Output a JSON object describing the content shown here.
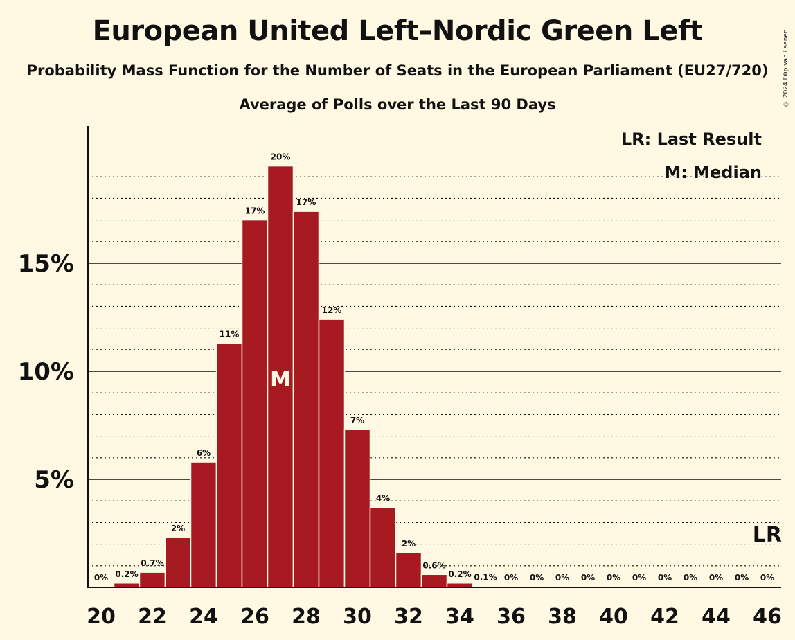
{
  "title": "European United Left–Nordic Green Left",
  "subtitle": "Probability Mass Function for the Number of Seats in the European Parliament (EU27/720)",
  "subtitle2": "Average of Polls over the Last 90 Days",
  "copyright": "© 2024 Filip van Laenen",
  "legend": {
    "last_result": "LR: Last Result",
    "median": "M: Median"
  },
  "markers": {
    "median_label": "M",
    "last_result_label": "LR"
  },
  "colors": {
    "bar": "#a71a22",
    "background": "#fff8e3"
  },
  "chart_data": {
    "type": "bar",
    "title": "European United Left–Nordic Green Left",
    "categories": [
      20,
      21,
      22,
      23,
      24,
      25,
      26,
      27,
      28,
      29,
      30,
      31,
      32,
      33,
      34,
      35,
      36,
      37,
      38,
      39,
      40,
      41,
      42,
      43,
      44,
      45,
      46
    ],
    "values": [
      0,
      0.2,
      0.7,
      2.3,
      5.8,
      11.3,
      17.0,
      19.5,
      17.4,
      12.4,
      7.3,
      3.7,
      1.6,
      0.6,
      0.2,
      0.05,
      0,
      0,
      0,
      0,
      0,
      0,
      0,
      0,
      0,
      0,
      0
    ],
    "labels": [
      "0%",
      "0.2%",
      "0.7%",
      "2%",
      "6%",
      "11%",
      "17%",
      "20%",
      "17%",
      "12%",
      "7%",
      "4%",
      "2%",
      "0.6%",
      "0.2%",
      "0.1%",
      "0%",
      "0%",
      "0%",
      "0%",
      "0%",
      "0%",
      "0%",
      "0%",
      "0%",
      "0%",
      "0%"
    ],
    "x_ticks": [
      20,
      22,
      24,
      26,
      28,
      30,
      32,
      34,
      36,
      38,
      40,
      42,
      44,
      46
    ],
    "y_ticks": [
      {
        "value": 5,
        "label": "5%"
      },
      {
        "value": 10,
        "label": "10%"
      },
      {
        "value": 15,
        "label": "15%"
      }
    ],
    "ylim": [
      0,
      21.3
    ],
    "median": 27,
    "last_result": 46,
    "grid": true,
    "legend_position": "top-right"
  }
}
